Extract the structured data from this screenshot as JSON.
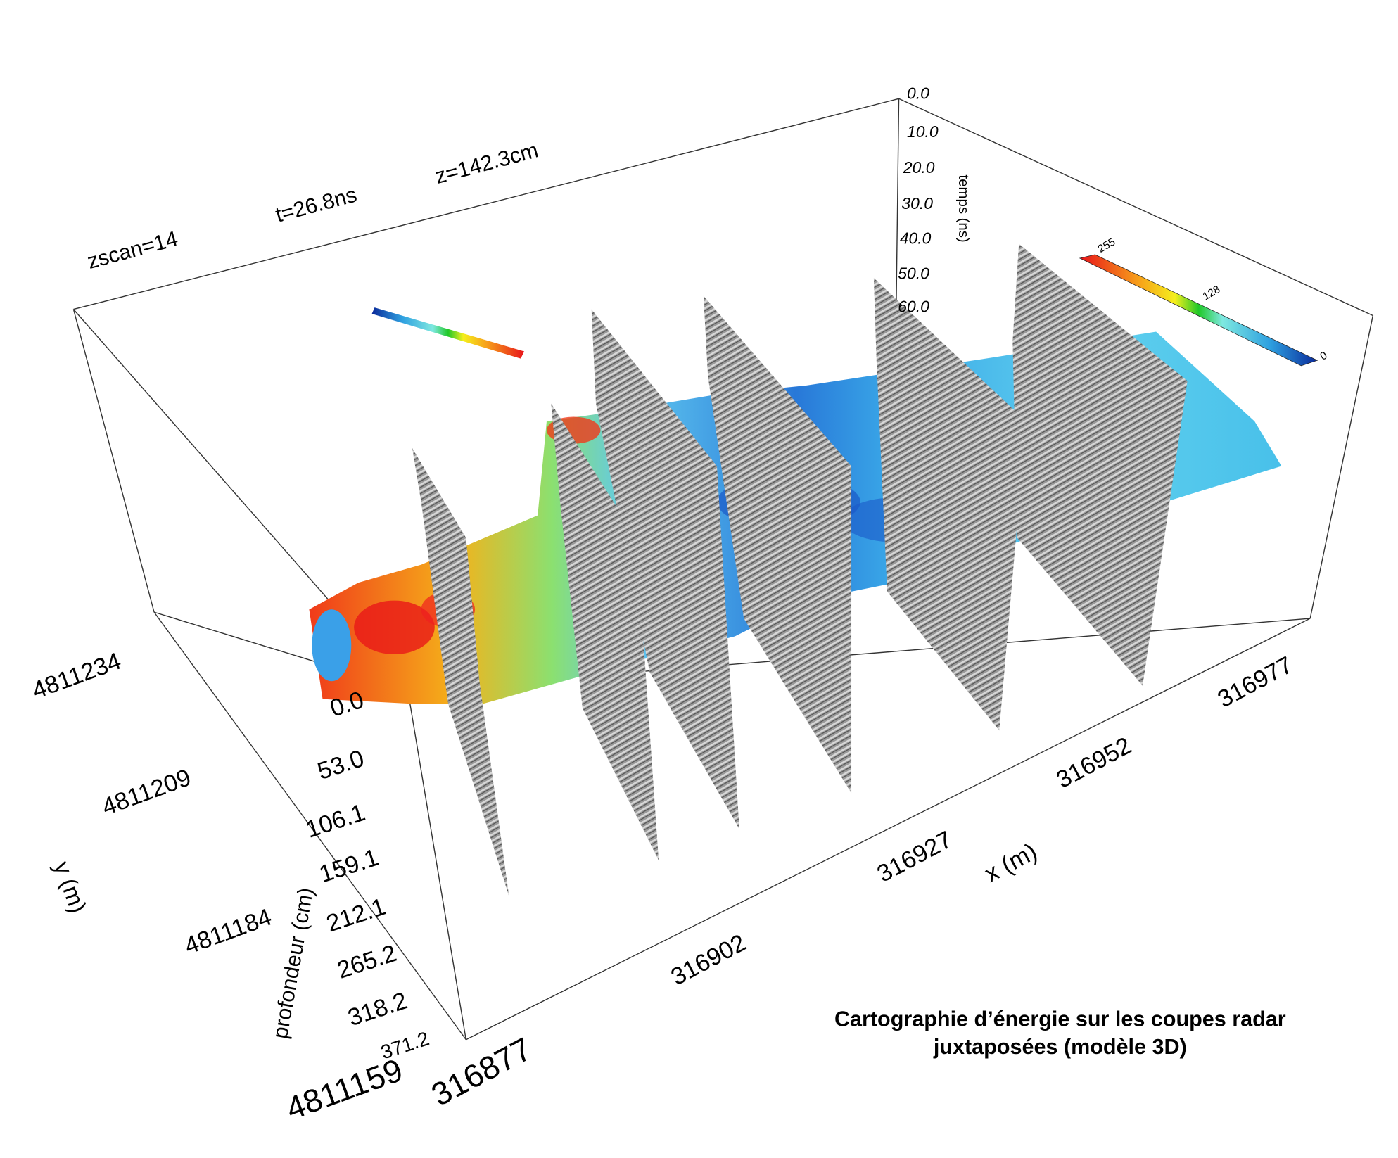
{
  "chart_data": {
    "type": "heatmap",
    "title": "Cartographie d’énergie sur les coupes radar juxtaposées (modèle 3D)",
    "title_lines": [
      "Cartographie d’énergie sur les coupes radar",
      "juxtaposées (modèle 3D)"
    ],
    "annotations": {
      "zscan": "zscan=14",
      "t": "t=26.8ns",
      "z": "z=142.3cm"
    },
    "x_axis": {
      "label": "x (m)",
      "ticks": [
        "316877",
        "316902",
        "316927",
        "316952",
        "316977"
      ]
    },
    "y_axis": {
      "label": "y (m)",
      "ticks": [
        "4811234",
        "4811209",
        "4811184",
        "4811159"
      ]
    },
    "depth_axis": {
      "label": "profondeur (cm)",
      "ticks": [
        "0.0",
        "53.0",
        "106.1",
        "159.1",
        "212.1",
        "265.2",
        "318.2",
        "371.2"
      ]
    },
    "time_axis": {
      "label": "temps (ns)",
      "ticks": [
        "0.0",
        "10.0",
        "20.0",
        "30.0",
        "40.0",
        "50.0",
        "60.0"
      ]
    },
    "colorbar": {
      "ticks": [
        "255",
        "128",
        "0"
      ],
      "range": [
        0,
        255
      ],
      "colors": [
        "#e8141a",
        "#f7a11a",
        "#f5ef1d",
        "#20c828",
        "#7ee8e0",
        "#2ea0e0",
        "#0a2a9a"
      ]
    },
    "radar_profiles": 6,
    "grid": false,
    "legend": "colorbar top-right"
  }
}
